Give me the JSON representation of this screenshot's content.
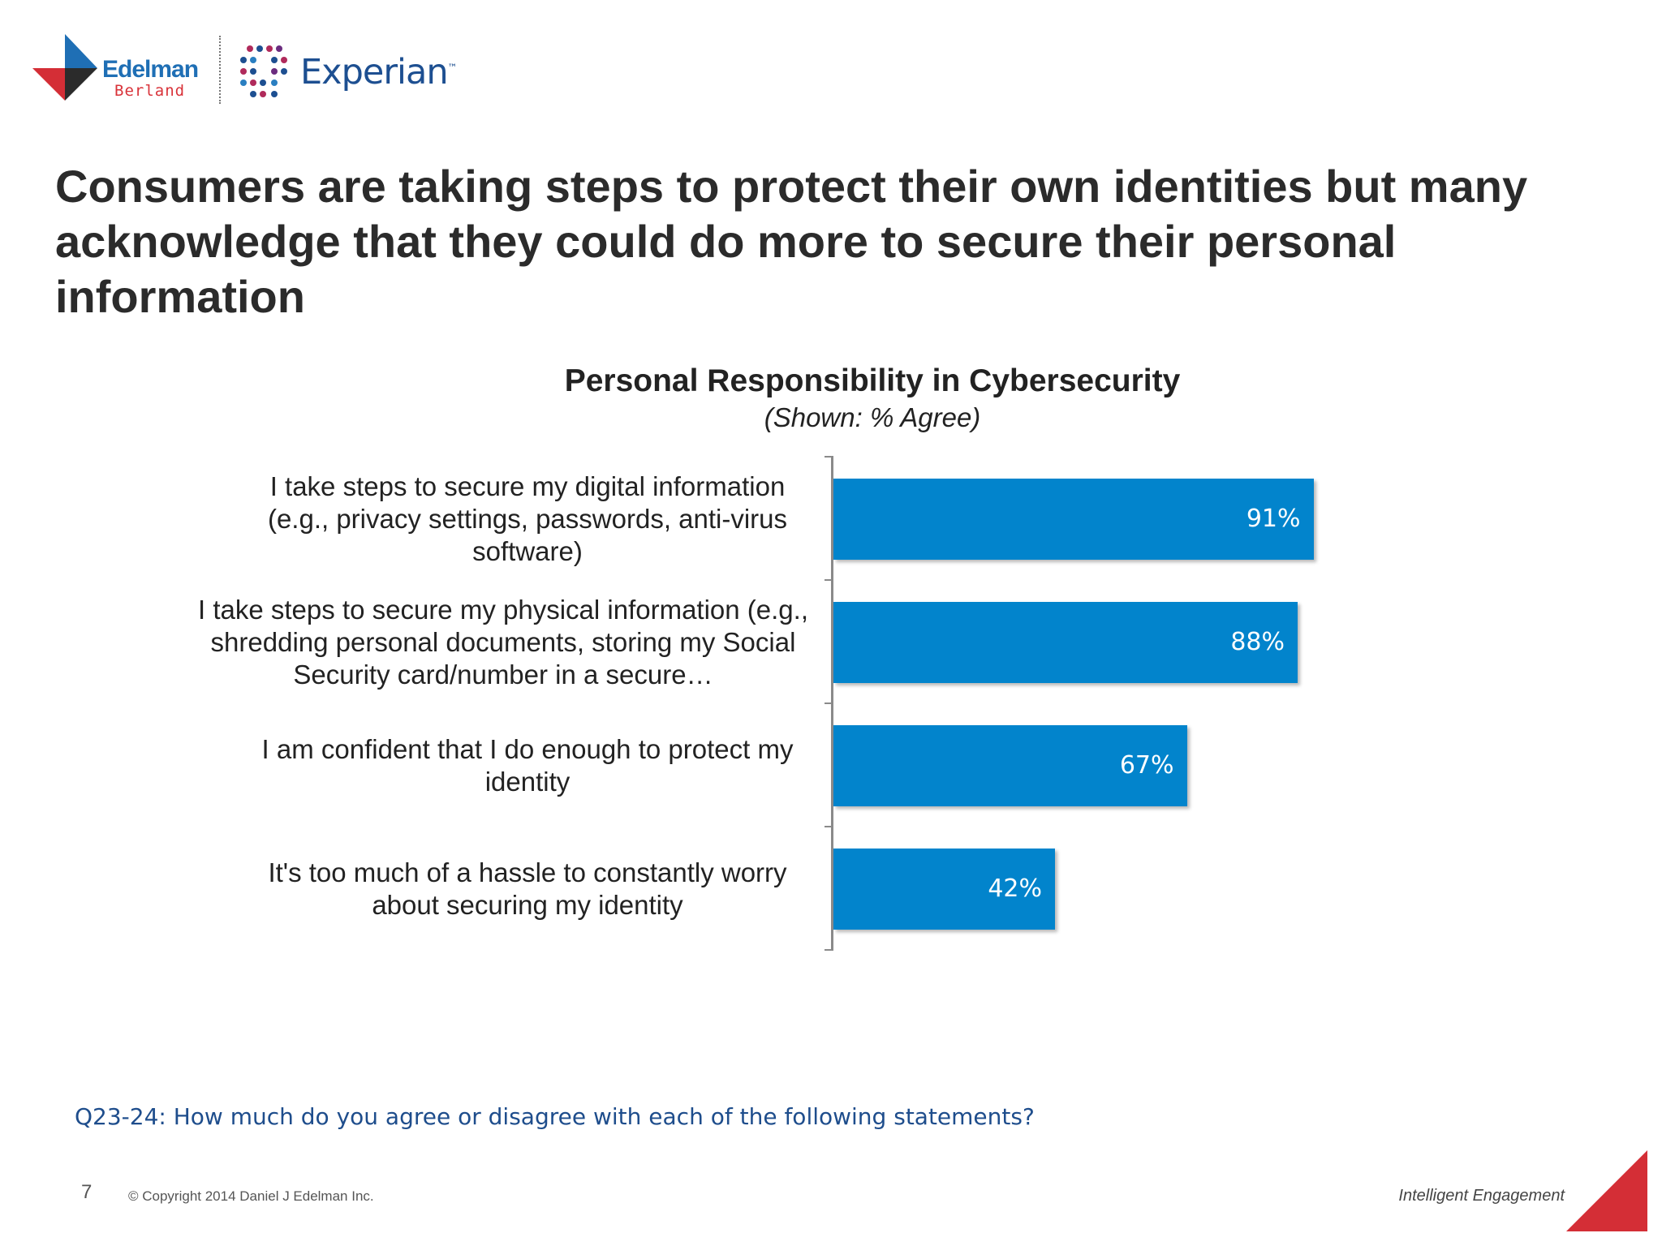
{
  "logos": {
    "edelman_name": "Edelman",
    "edelman_sub": "Berland",
    "experian_name": "Experian",
    "experian_tm": "™"
  },
  "headline": "Consumers are taking steps to protect their own identities but many acknowledge that they could do more to secure their personal information",
  "chart_data": {
    "type": "bar",
    "orientation": "horizontal",
    "title": "Personal Responsibility in Cybersecurity",
    "subtitle": "(Shown: % Agree)",
    "categories": [
      "I take steps to secure my digital information (e.g., privacy settings, passwords, anti-virus software)",
      "I take steps to secure my physical information (e.g., shredding personal documents, storing my Social Security card/number in a secure…",
      "I am confident that I do enough to protect my identity",
      "It's too much of a hassle to constantly worry about securing my identity"
    ],
    "values": [
      91,
      88,
      67,
      42
    ],
    "value_labels": [
      "91%",
      "88%",
      "67%",
      "42%"
    ],
    "xlim": [
      0,
      100
    ],
    "grid": false,
    "legend": "none",
    "bar_color": "#0284cc"
  },
  "question": "Q23-24: How much do you agree or disagree with each of the following statements?",
  "footer": {
    "page_number": "7",
    "copyright": "© Copyright 2014 Daniel J Edelman Inc.",
    "tagline": "Intelligent Engagement"
  },
  "colors": {
    "accent_red": "#d42e36",
    "bar_blue": "#0284cc",
    "question_blue": "#1e4d8c"
  }
}
